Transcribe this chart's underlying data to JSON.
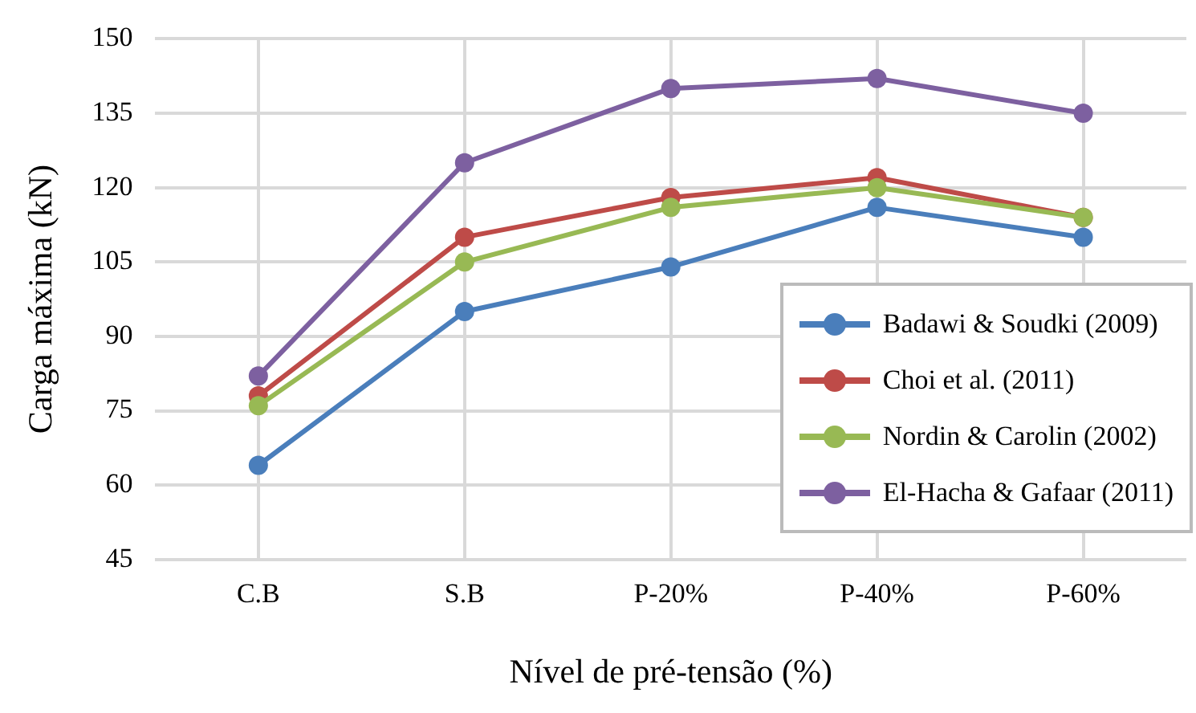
{
  "chart_data": {
    "type": "line",
    "xlabel": "Nível de pré-tensão (%)",
    "ylabel": "Carga máxima (kN)",
    "categories": [
      "C.B",
      "S.B",
      "P-20%",
      "P-40%",
      "P-60%"
    ],
    "series": [
      {
        "name": "Badawi & Soudki (2009)",
        "color": "#4a7ebb",
        "values": [
          64,
          95,
          104,
          116,
          110
        ]
      },
      {
        "name": "Choi et al. (2011)",
        "color": "#be4b48",
        "values": [
          78,
          110,
          118,
          122,
          114
        ]
      },
      {
        "name": "Nordin & Carolin (2002)",
        "color": "#98b954",
        "values": [
          76,
          105,
          116,
          120,
          114
        ]
      },
      {
        "name": "El-Hacha & Gafaar (2011)",
        "color": "#7d60a0",
        "values": [
          82,
          125,
          140,
          142,
          135
        ]
      }
    ],
    "ylim": [
      45,
      150
    ],
    "yticks": [
      45,
      60,
      75,
      90,
      105,
      120,
      135,
      150
    ],
    "grid": true,
    "legend": "bottom right",
    "marker": "circle",
    "line_style": "solid"
  }
}
